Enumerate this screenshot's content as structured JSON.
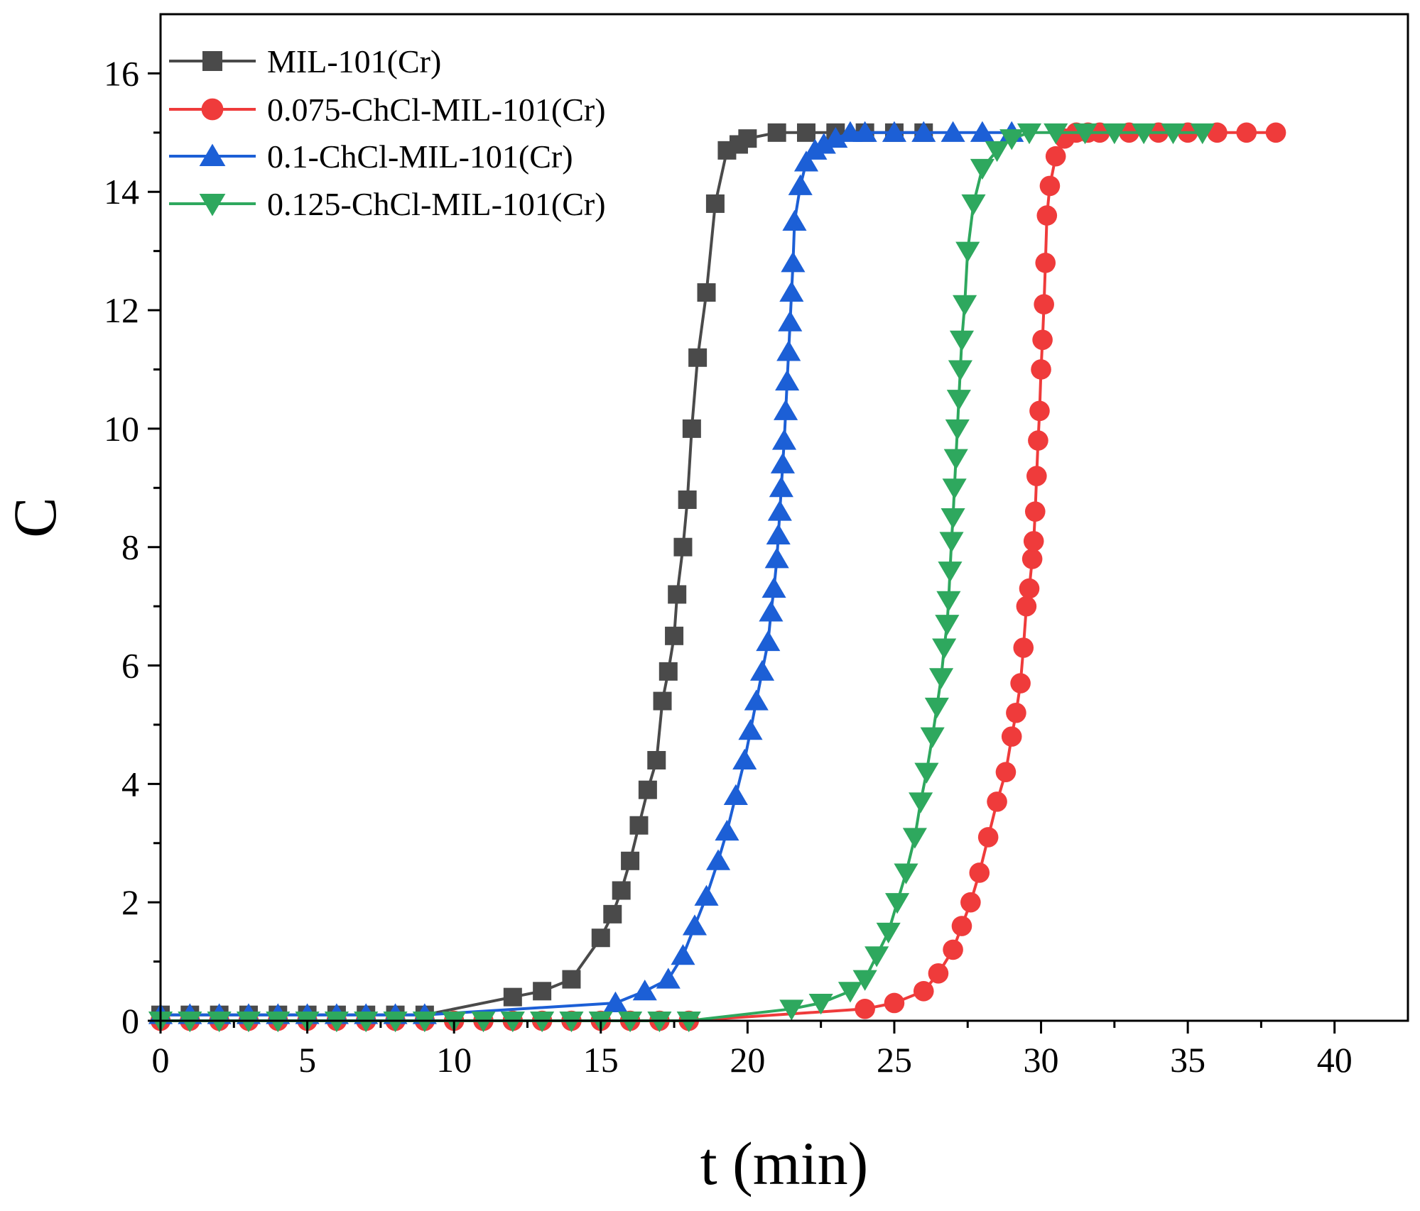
{
  "chart_data": {
    "type": "line",
    "title": "",
    "xlabel": "t (min)",
    "ylabel": "C",
    "xlim": [
      0,
      42.5
    ],
    "ylim": [
      0,
      17
    ],
    "xticks": [
      0,
      5,
      10,
      15,
      20,
      25,
      30,
      35,
      40
    ],
    "yticks": [
      0,
      2,
      4,
      6,
      8,
      10,
      12,
      14,
      16
    ],
    "xtick_labels": [
      "0",
      "5",
      "10",
      "15",
      "20",
      "25",
      "30",
      "35",
      "40"
    ],
    "ytick_labels": [
      "0",
      "2",
      "4",
      "6",
      "8",
      "10",
      "12",
      "14",
      "16"
    ],
    "grid": false,
    "legend_position": "top-left",
    "series": [
      {
        "name": "MIL-101(Cr)",
        "color": "#4a4a4a",
        "marker": "square",
        "x": [
          0,
          1,
          2,
          3,
          4,
          5,
          6,
          7,
          8,
          9,
          12,
          13,
          14,
          15,
          15.4,
          15.7,
          16,
          16.3,
          16.6,
          16.9,
          17.1,
          17.3,
          17.5,
          17.6,
          17.8,
          17.95,
          18.1,
          18.3,
          18.6,
          18.9,
          19.3,
          19.7,
          20,
          21,
          22,
          23,
          24,
          25,
          26
        ],
        "y": [
          0.1,
          0.1,
          0.1,
          0.1,
          0.1,
          0.1,
          0.1,
          0.1,
          0.1,
          0.1,
          0.4,
          0.5,
          0.7,
          1.4,
          1.8,
          2.2,
          2.7,
          3.3,
          3.9,
          4.4,
          5.4,
          5.9,
          6.5,
          7.2,
          8.0,
          8.8,
          10.0,
          11.2,
          12.3,
          13.8,
          14.7,
          14.8,
          14.9,
          15,
          15,
          15,
          15,
          15,
          15
        ]
      },
      {
        "name": "0.075-ChCl-MIL-101(Cr)",
        "color": "#ef3b3b",
        "marker": "circle",
        "x": [
          0,
          1,
          2,
          3,
          4,
          5,
          6,
          7,
          8,
          9,
          10,
          11,
          12,
          13,
          14,
          15,
          16,
          17,
          18,
          24,
          25,
          26,
          26.5,
          27,
          27.3,
          27.6,
          27.9,
          28.2,
          28.5,
          28.8,
          29,
          29.15,
          29.3,
          29.4,
          29.5,
          29.6,
          29.7,
          29.75,
          29.8,
          29.85,
          29.9,
          29.95,
          30,
          30.05,
          30.1,
          30.15,
          30.2,
          30.3,
          30.5,
          30.8,
          31.2,
          31.6,
          32,
          33,
          34,
          35,
          36,
          37,
          38
        ],
        "y": [
          0,
          0,
          0,
          0,
          0,
          0,
          0,
          0,
          0,
          0,
          0,
          0,
          0,
          0,
          0,
          0,
          0,
          0,
          0,
          0.2,
          0.3,
          0.5,
          0.8,
          1.2,
          1.6,
          2.0,
          2.5,
          3.1,
          3.7,
          4.2,
          4.8,
          5.2,
          5.7,
          6.3,
          7.0,
          7.3,
          7.8,
          8.1,
          8.6,
          9.2,
          9.8,
          10.3,
          11.0,
          11.5,
          12.1,
          12.8,
          13.6,
          14.1,
          14.6,
          14.9,
          15,
          15,
          15,
          15,
          15,
          15,
          15,
          15,
          15
        ]
      },
      {
        "name": "0.1-ChCl-MIL-101(Cr)",
        "color": "#1c5fd6",
        "marker": "triangle-up",
        "x": [
          0,
          1,
          2,
          3,
          4,
          5,
          6,
          7,
          8,
          9,
          15.5,
          16.5,
          17.3,
          17.8,
          18.2,
          18.6,
          19,
          19.3,
          19.6,
          19.9,
          20.1,
          20.3,
          20.5,
          20.7,
          20.8,
          20.9,
          21,
          21.05,
          21.1,
          21.15,
          21.2,
          21.25,
          21.3,
          21.35,
          21.4,
          21.45,
          21.5,
          21.55,
          21.6,
          21.8,
          22,
          22.3,
          22.6,
          23,
          23.5,
          24,
          25,
          26,
          27,
          28,
          29
        ],
        "y": [
          0.1,
          0.1,
          0.1,
          0.1,
          0.1,
          0.1,
          0.1,
          0.1,
          0.1,
          0.1,
          0.3,
          0.5,
          0.7,
          1.1,
          1.6,
          2.1,
          2.7,
          3.2,
          3.8,
          4.4,
          4.9,
          5.4,
          5.9,
          6.4,
          6.9,
          7.3,
          7.8,
          8.2,
          8.6,
          9.0,
          9.4,
          9.8,
          10.3,
          10.8,
          11.3,
          11.8,
          12.3,
          12.8,
          13.5,
          14.1,
          14.5,
          14.7,
          14.8,
          14.9,
          15,
          15,
          15,
          15,
          15,
          15,
          15
        ]
      },
      {
        "name": "0.125-ChCl-MIL-101(Cr)",
        "color": "#2ea85e",
        "marker": "triangle-down",
        "x": [
          0,
          1,
          2,
          3,
          4,
          5,
          6,
          7,
          8,
          9,
          10,
          11,
          12,
          13,
          14,
          15,
          16,
          17,
          18,
          21.5,
          22.5,
          23.5,
          24,
          24.4,
          24.8,
          25.1,
          25.4,
          25.7,
          25.9,
          26.1,
          26.3,
          26.45,
          26.6,
          26.7,
          26.8,
          26.85,
          26.9,
          26.95,
          27,
          27.05,
          27.1,
          27.15,
          27.2,
          27.25,
          27.3,
          27.4,
          27.5,
          27.7,
          28,
          28.5,
          29,
          29.6,
          30.5,
          31.5,
          32.5,
          33.5,
          34.5,
          35.5
        ],
        "y": [
          0,
          0,
          0,
          0,
          0,
          0,
          0,
          0,
          0,
          0,
          0,
          0,
          0,
          0,
          0,
          0,
          0,
          0,
          0,
          0.2,
          0.3,
          0.5,
          0.7,
          1.1,
          1.5,
          2.0,
          2.5,
          3.1,
          3.7,
          4.2,
          4.8,
          5.3,
          5.8,
          6.3,
          6.7,
          7.1,
          7.6,
          8.1,
          8.5,
          9.0,
          9.5,
          10.0,
          10.5,
          11.0,
          11.5,
          12.1,
          13.0,
          13.8,
          14.4,
          14.7,
          14.9,
          15,
          15,
          15,
          15,
          15,
          15,
          15
        ]
      }
    ]
  }
}
